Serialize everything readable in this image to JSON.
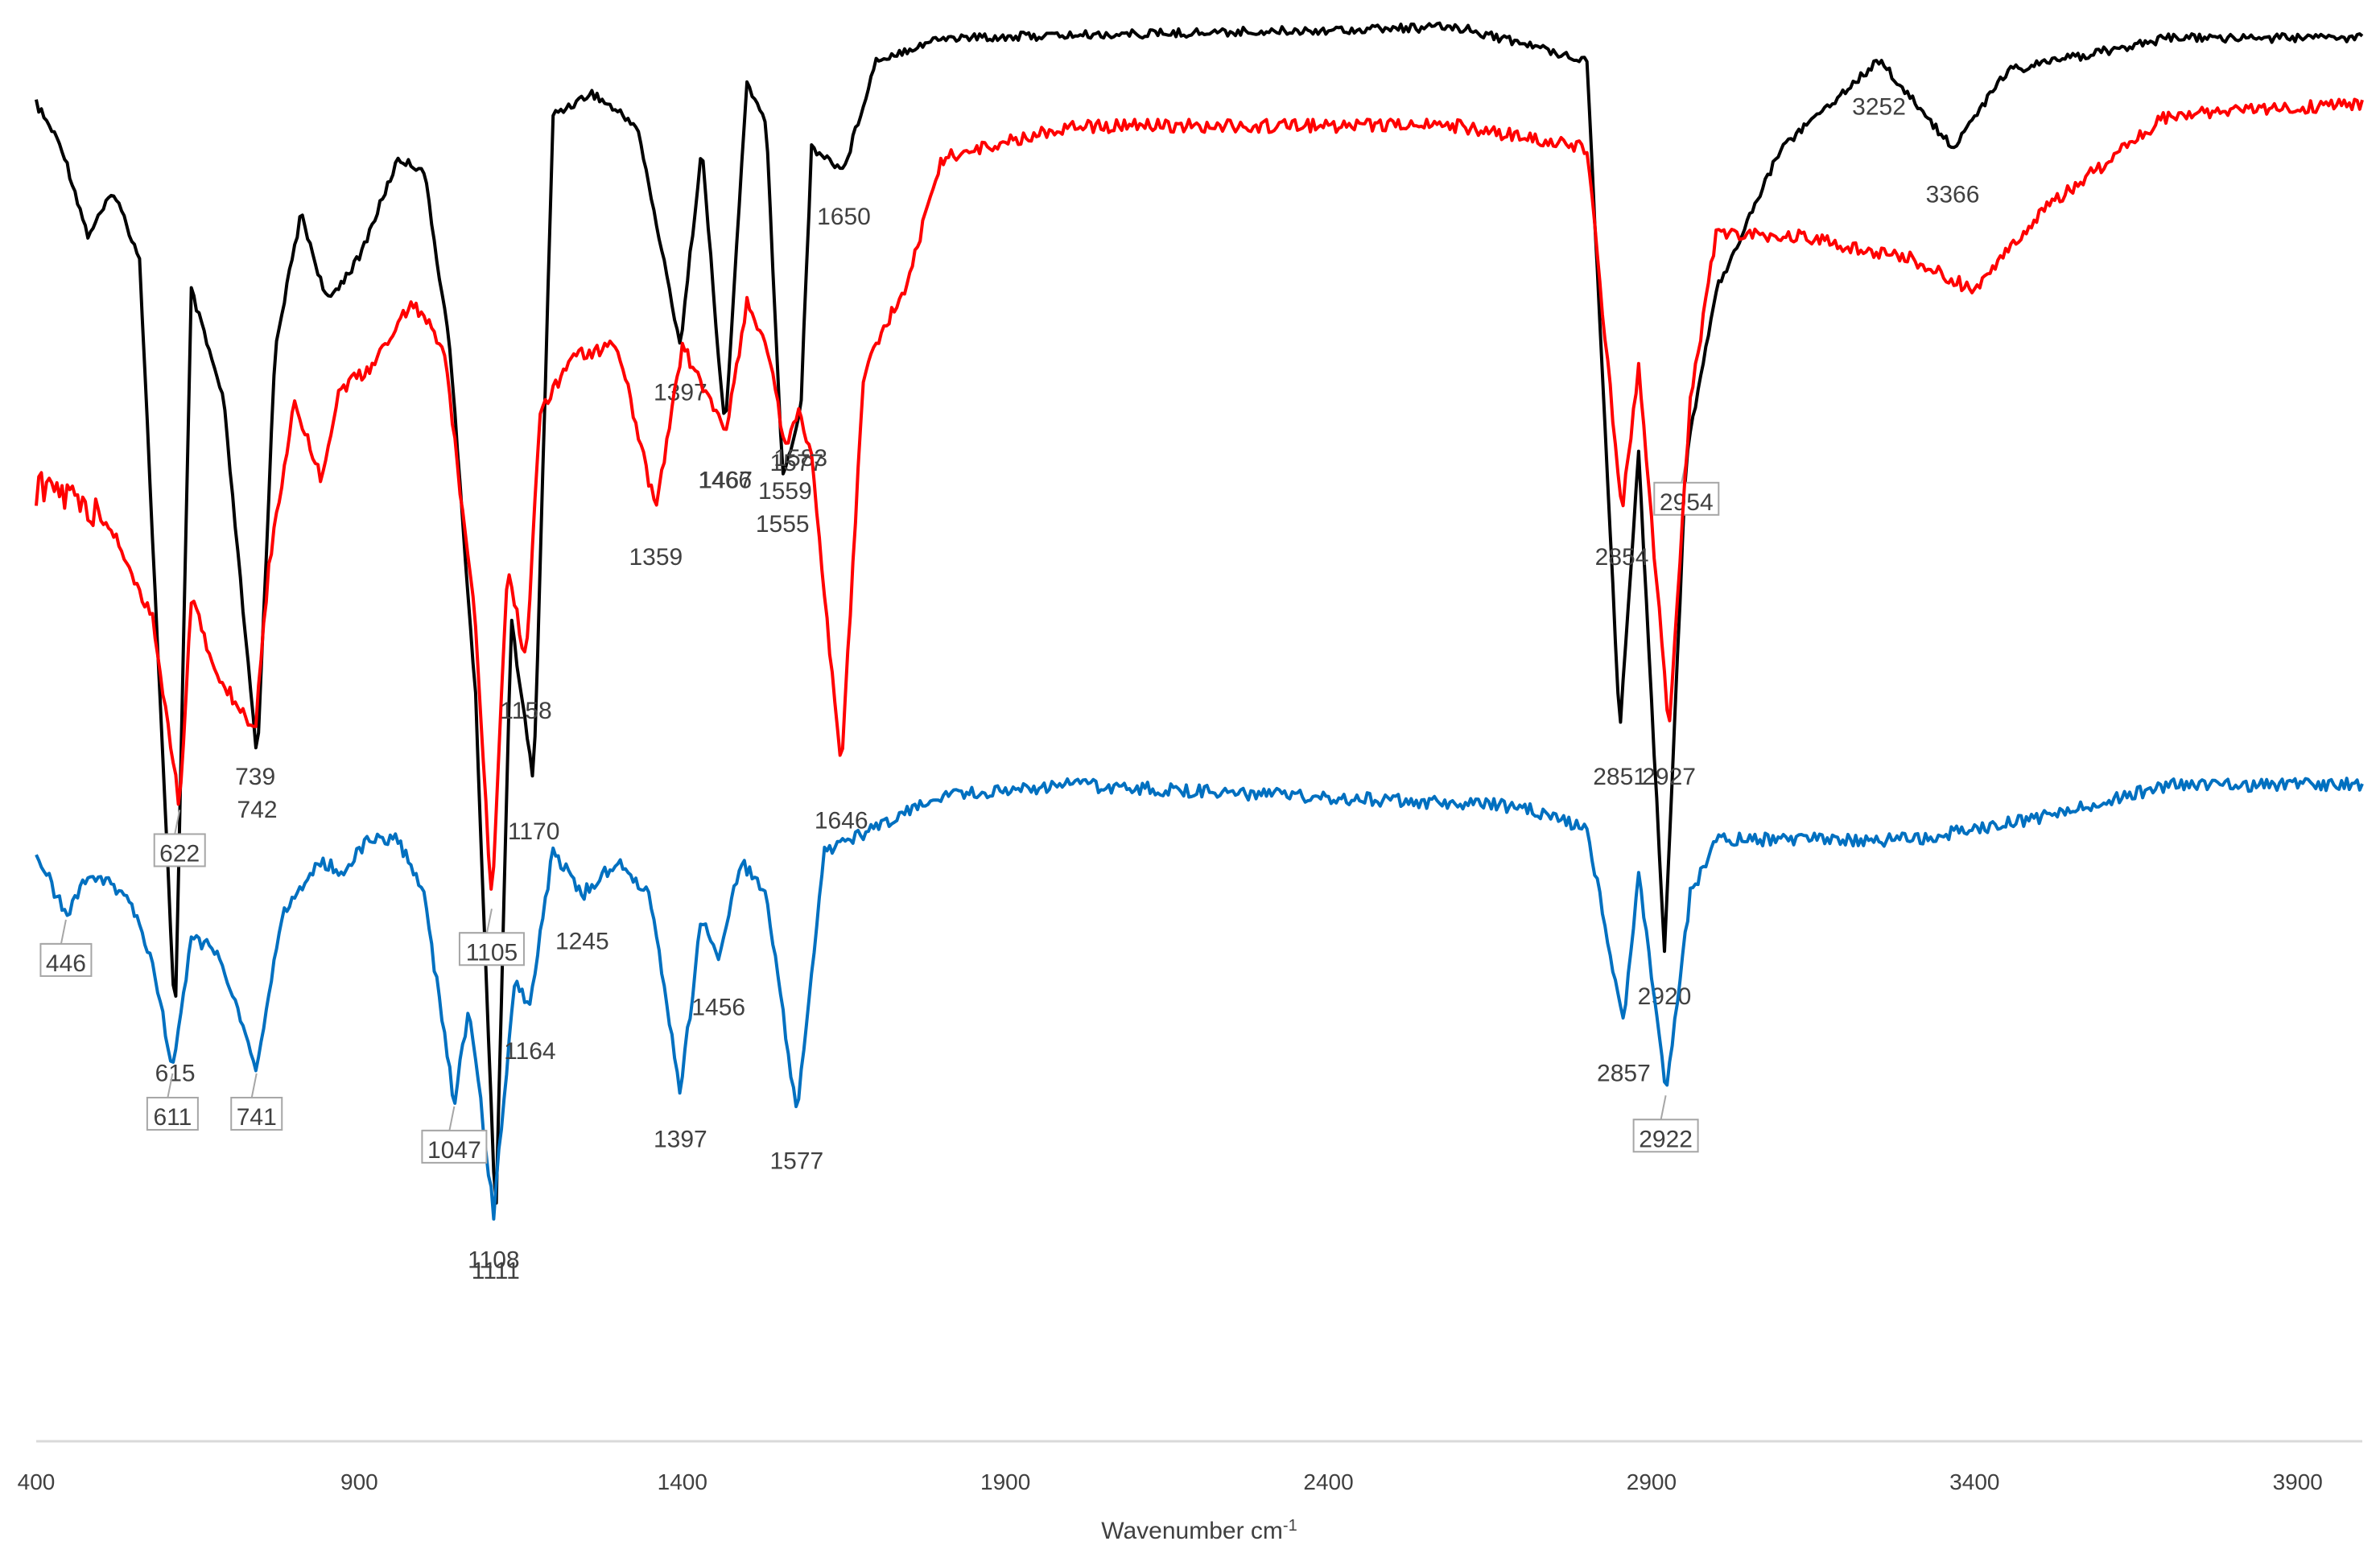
{
  "chart_data": {
    "type": "line",
    "title": "",
    "xlabel": "Wavenumber cm",
    "xlabel_superscript": "-1",
    "ylabel": "",
    "xlim": [
      400,
      4000
    ],
    "x_ticks": [
      400,
      900,
      1400,
      1900,
      2400,
      2900,
      3400,
      3900
    ],
    "x_tick_labels": [
      "400",
      "900",
      "1400",
      "1900",
      "2400",
      "2900",
      "3400",
      "3900"
    ],
    "grid": false,
    "legend": "none",
    "series": [
      {
        "color": "#000000",
        "baseline": 0.05,
        "noise": 0.004,
        "shape": [
          [
            400,
            0.08
          ],
          [
            440,
            0.12
          ],
          [
            480,
            0.2
          ],
          [
            520,
            0.16
          ],
          [
            560,
            0.22
          ],
          [
            615,
            0.92
          ],
          [
            640,
            0.25
          ],
          [
            690,
            0.35
          ],
          [
            742,
            0.68
          ],
          [
            770,
            0.3
          ],
          [
            810,
            0.18
          ],
          [
            850,
            0.26
          ],
          [
            900,
            0.22
          ],
          [
            960,
            0.13
          ],
          [
            1000,
            0.14
          ],
          [
            1040,
            0.3
          ],
          [
            1080,
            0.62
          ],
          [
            1111,
            1.1
          ],
          [
            1135,
            0.55
          ],
          [
            1170,
            0.7
          ],
          [
            1200,
            0.09
          ],
          [
            1260,
            0.07
          ],
          [
            1330,
            0.1
          ],
          [
            1397,
            0.3
          ],
          [
            1430,
            0.12
          ],
          [
            1466,
            0.38
          ],
          [
            1500,
            0.06
          ],
          [
            1530,
            0.1
          ],
          [
            1555,
            0.42
          ],
          [
            1583,
            0.36
          ],
          [
            1600,
            0.12
          ],
          [
            1650,
            0.14
          ],
          [
            1700,
            0.04
          ],
          [
            1800,
            0.02
          ],
          [
            2600,
            0.01
          ],
          [
            2800,
            0.04
          ],
          [
            2851,
            0.65
          ],
          [
            2880,
            0.4
          ],
          [
            2920,
            0.85
          ],
          [
            2954,
            0.4
          ],
          [
            3000,
            0.25
          ],
          [
            3100,
            0.12
          ],
          [
            3252,
            0.04
          ],
          [
            3366,
            0.12
          ],
          [
            3450,
            0.05
          ],
          [
            3700,
            0.02
          ],
          [
            4000,
            0.02
          ]
        ],
        "peaks": [
          {
            "x": 615,
            "label": "615",
            "callout": false
          },
          {
            "x": 742,
            "label": "742",
            "callout": false
          },
          {
            "x": 1111,
            "label": "1111",
            "callout": false
          },
          {
            "x": 1170,
            "label": "1170",
            "callout": false
          },
          {
            "x": 1397,
            "label": "1397",
            "callout": false
          },
          {
            "x": 1466,
            "label": "1466",
            "callout": false
          },
          {
            "x": 1583,
            "label": "1583",
            "callout": false
          },
          {
            "x": 1555,
            "label": "1555",
            "callout": false
          },
          {
            "x": 1650,
            "label": "1650",
            "callout": false
          },
          {
            "x": 2851,
            "label": "2851",
            "callout": false
          },
          {
            "x": 2920,
            "label": "2920",
            "callout": false
          },
          {
            "x": 2954,
            "label": "2954",
            "callout": true
          },
          {
            "x": 3252,
            "label": "3252",
            "callout": false
          },
          {
            "x": 3366,
            "label": "3366",
            "callout": false
          }
        ]
      },
      {
        "color": "#ff0000",
        "baseline": 0.38,
        "noise": 0.006,
        "shape": [
          [
            400,
            0.43
          ],
          [
            460,
            0.44
          ],
          [
            520,
            0.47
          ],
          [
            580,
            0.55
          ],
          [
            622,
            0.72
          ],
          [
            640,
            0.53
          ],
          [
            680,
            0.6
          ],
          [
            739,
            0.65
          ],
          [
            760,
            0.5
          ],
          [
            800,
            0.35
          ],
          [
            840,
            0.42
          ],
          [
            870,
            0.34
          ],
          [
            920,
            0.32
          ],
          [
            980,
            0.26
          ],
          [
            1030,
            0.3
          ],
          [
            1080,
            0.55
          ],
          [
            1105,
            0.81
          ],
          [
            1130,
            0.5
          ],
          [
            1158,
            0.59
          ],
          [
            1180,
            0.36
          ],
          [
            1230,
            0.31
          ],
          [
            1300,
            0.3
          ],
          [
            1359,
            0.45
          ],
          [
            1400,
            0.3
          ],
          [
            1467,
            0.38
          ],
          [
            1500,
            0.26
          ],
          [
            1530,
            0.3
          ],
          [
            1559,
            0.39
          ],
          [
            1580,
            0.36
          ],
          [
            1600,
            0.4
          ],
          [
            1646,
            0.69
          ],
          [
            1680,
            0.33
          ],
          [
            1700,
            0.3
          ],
          [
            1750,
            0.24
          ],
          [
            1800,
            0.13
          ],
          [
            2000,
            0.1
          ],
          [
            2600,
            0.1
          ],
          [
            2800,
            0.12
          ],
          [
            2854,
            0.45
          ],
          [
            2880,
            0.32
          ],
          [
            2927,
            0.65
          ],
          [
            2960,
            0.35
          ],
          [
            3000,
            0.2
          ],
          [
            3120,
            0.2
          ],
          [
            3300,
            0.22
          ],
          [
            3400,
            0.25
          ],
          [
            3500,
            0.18
          ],
          [
            3700,
            0.09
          ],
          [
            4000,
            0.08
          ]
        ],
        "peaks": [
          {
            "x": 622,
            "label": "622",
            "callout": true
          },
          {
            "x": 739,
            "label": "739",
            "callout": false
          },
          {
            "x": 1105,
            "label": "1105",
            "callout": true
          },
          {
            "x": 1158,
            "label": "1158",
            "callout": false
          },
          {
            "x": 1359,
            "label": "1359",
            "callout": false
          },
          {
            "x": 1467,
            "label": "1467",
            "callout": false
          },
          {
            "x": 1559,
            "label": "1559",
            "callout": false
          },
          {
            "x": 1577,
            "label": "1577",
            "callout": false
          },
          {
            "x": 1646,
            "label": "1646",
            "callout": false
          },
          {
            "x": 2854,
            "label": "2854",
            "callout": false
          },
          {
            "x": 2927,
            "label": "2927",
            "callout": false
          }
        ]
      },
      {
        "color": "#0070c0",
        "baseline": 0.7,
        "noise": 0.006,
        "shape": [
          [
            400,
            0.76
          ],
          [
            446,
            0.82
          ],
          [
            480,
            0.78
          ],
          [
            540,
            0.8
          ],
          [
            580,
            0.86
          ],
          [
            611,
            0.96
          ],
          [
            640,
            0.84
          ],
          [
            680,
            0.85
          ],
          [
            741,
            0.96
          ],
          [
            780,
            0.82
          ],
          [
            840,
            0.77
          ],
          [
            880,
            0.78
          ],
          [
            910,
            0.75
          ],
          [
            960,
            0.75
          ],
          [
            1000,
            0.8
          ],
          [
            1047,
            0.99
          ],
          [
            1070,
            0.9
          ],
          [
            1108,
            1.09
          ],
          [
            1140,
            0.88
          ],
          [
            1164,
            0.9
          ],
          [
            1200,
            0.76
          ],
          [
            1245,
            0.8
          ],
          [
            1300,
            0.77
          ],
          [
            1350,
            0.8
          ],
          [
            1397,
            0.98
          ],
          [
            1430,
            0.82
          ],
          [
            1456,
            0.86
          ],
          [
            1490,
            0.77
          ],
          [
            1530,
            0.8
          ],
          [
            1577,
            1.0
          ],
          [
            1620,
            0.76
          ],
          [
            1700,
            0.74
          ],
          [
            1760,
            0.72
          ],
          [
            1800,
            0.71
          ],
          [
            2000,
            0.7
          ],
          [
            2700,
            0.72
          ],
          [
            2800,
            0.74
          ],
          [
            2857,
            0.92
          ],
          [
            2880,
            0.78
          ],
          [
            2922,
            0.98
          ],
          [
            2960,
            0.8
          ],
          [
            3000,
            0.75
          ],
          [
            3100,
            0.75
          ],
          [
            3300,
            0.75
          ],
          [
            3500,
            0.73
          ],
          [
            3700,
            0.7
          ],
          [
            4000,
            0.7
          ]
        ],
        "peaks": [
          {
            "x": 446,
            "label": "446",
            "callout": true
          },
          {
            "x": 611,
            "label": "611",
            "callout": true
          },
          {
            "x": 741,
            "label": "741",
            "callout": true
          },
          {
            "x": 1047,
            "label": "1047",
            "callout": true
          },
          {
            "x": 1108,
            "label": "1108",
            "callout": false
          },
          {
            "x": 1164,
            "label": "1164",
            "callout": false
          },
          {
            "x": 1245,
            "label": "1245",
            "callout": false
          },
          {
            "x": 1397,
            "label": "1397",
            "callout": false
          },
          {
            "x": 1456,
            "label": "1456",
            "callout": false
          },
          {
            "x": 1577,
            "label": "1577",
            "callout": false
          },
          {
            "x": 2857,
            "label": "2857",
            "callout": false
          },
          {
            "x": 2922,
            "label": "2922",
            "callout": true
          }
        ]
      }
    ]
  }
}
